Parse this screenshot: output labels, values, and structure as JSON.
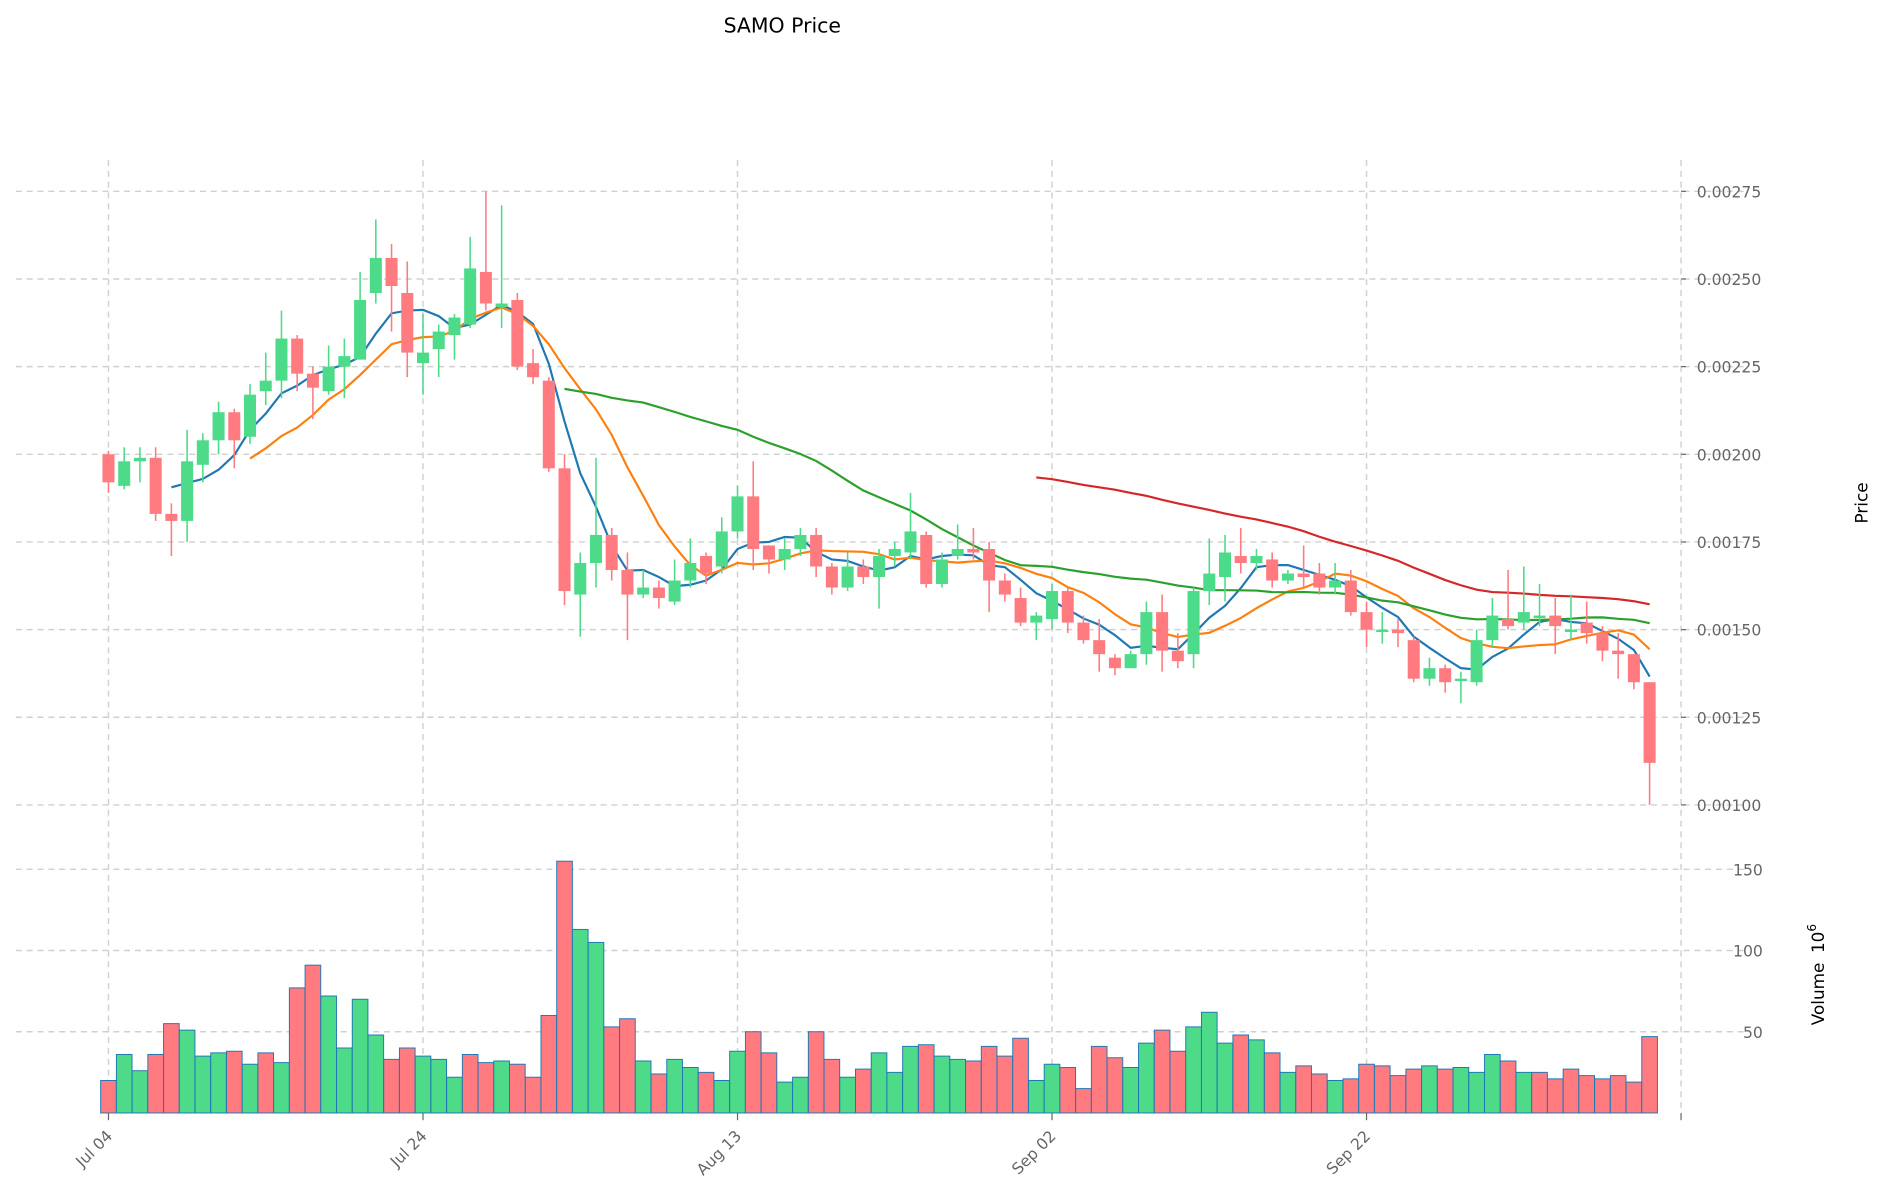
{
  "chart_data": {
    "type": "candlestick",
    "title": "SAMO Price",
    "ylabel_price": "Price",
    "ylabel_volume": "Volume",
    "volume_unit": "10",
    "volume_exp": "6",
    "start_date": "Jul 04",
    "x_tick_labels": [
      {
        "label": "Jul 04",
        "index": 0
      },
      {
        "label": "Jul 24",
        "index": 20
      },
      {
        "label": "Aug 13",
        "index": 40
      },
      {
        "label": "Sep 02",
        "index": 60
      },
      {
        "label": "Sep 22",
        "index": 80
      }
    ],
    "price_ticks": [
      "0.00100",
      "0.00125",
      "0.00150",
      "0.00175",
      "0.00200",
      "0.00225",
      "0.00250",
      "0.00275"
    ],
    "volume_ticks": [
      "50",
      "100",
      "150"
    ],
    "price_range": [
      0.00096,
      0.00285
    ],
    "volume_range": [
      0,
      160
    ],
    "colors": {
      "up": "#4ddb8a",
      "down": "#ff7b80",
      "volume_edge": "#1f77b4",
      "ma": [
        "#1f77b4",
        "#ff7f0e",
        "#2ca02c",
        "#d62728"
      ]
    },
    "moving_averages": [
      5,
      10,
      30,
      60
    ],
    "ohlc": [
      [
        0.002,
        0.00201,
        0.00189,
        0.00192
      ],
      [
        0.00191,
        0.00202,
        0.0019,
        0.00198
      ],
      [
        0.00198,
        0.00202,
        0.00192,
        0.00199
      ],
      [
        0.00199,
        0.00202,
        0.00181,
        0.00183
      ],
      [
        0.00183,
        0.00186,
        0.00171,
        0.00181
      ],
      [
        0.00181,
        0.00207,
        0.00175,
        0.00198
      ],
      [
        0.00197,
        0.00206,
        0.00192,
        0.00204
      ],
      [
        0.00204,
        0.00215,
        0.002,
        0.00212
      ],
      [
        0.00212,
        0.00213,
        0.00196,
        0.00204
      ],
      [
        0.00205,
        0.0022,
        0.00203,
        0.00217
      ],
      [
        0.00218,
        0.00229,
        0.00214,
        0.00221
      ],
      [
        0.00221,
        0.00241,
        0.00216,
        0.00233
      ],
      [
        0.00233,
        0.00234,
        0.00218,
        0.00223
      ],
      [
        0.00223,
        0.00225,
        0.0021,
        0.00219
      ],
      [
        0.00218,
        0.00231,
        0.00217,
        0.00225
      ],
      [
        0.00225,
        0.00233,
        0.00216,
        0.00228
      ],
      [
        0.00227,
        0.00252,
        0.00227,
        0.00244
      ],
      [
        0.00246,
        0.00267,
        0.00243,
        0.00256
      ],
      [
        0.00256,
        0.0026,
        0.00235,
        0.00248
      ],
      [
        0.00246,
        0.00255,
        0.00222,
        0.00229
      ],
      [
        0.00226,
        0.0024,
        0.00217,
        0.00229
      ],
      [
        0.0023,
        0.00237,
        0.00222,
        0.00235
      ],
      [
        0.00234,
        0.0024,
        0.00227,
        0.00239
      ],
      [
        0.00237,
        0.00262,
        0.00236,
        0.00253
      ],
      [
        0.00252,
        0.00275,
        0.00241,
        0.00243
      ],
      [
        0.00242,
        0.00271,
        0.00236,
        0.00243
      ],
      [
        0.00244,
        0.00246,
        0.00224,
        0.00225
      ],
      [
        0.00226,
        0.0023,
        0.0022,
        0.00222
      ],
      [
        0.00221,
        0.00222,
        0.00195,
        0.00196
      ],
      [
        0.00196,
        0.002,
        0.00157,
        0.00161
      ],
      [
        0.0016,
        0.00172,
        0.00148,
        0.00169
      ],
      [
        0.00169,
        0.00199,
        0.00162,
        0.00177
      ],
      [
        0.00177,
        0.00179,
        0.00164,
        0.00167
      ],
      [
        0.00167,
        0.00172,
        0.00147,
        0.0016
      ],
      [
        0.0016,
        0.00167,
        0.00159,
        0.00162
      ],
      [
        0.00162,
        0.00164,
        0.00156,
        0.00159
      ],
      [
        0.00158,
        0.0017,
        0.00157,
        0.00164
      ],
      [
        0.00164,
        0.00176,
        0.00162,
        0.00169
      ],
      [
        0.00171,
        0.00172,
        0.00163,
        0.00166
      ],
      [
        0.00168,
        0.00182,
        0.00166,
        0.00178
      ],
      [
        0.00178,
        0.00191,
        0.00176,
        0.00188
      ],
      [
        0.00188,
        0.00198,
        0.00167,
        0.00173
      ],
      [
        0.00174,
        0.00174,
        0.00166,
        0.0017
      ],
      [
        0.0017,
        0.00176,
        0.00167,
        0.00173
      ],
      [
        0.00173,
        0.00179,
        0.00171,
        0.00177
      ],
      [
        0.00177,
        0.00179,
        0.00165,
        0.00168
      ],
      [
        0.00168,
        0.00169,
        0.0016,
        0.00162
      ],
      [
        0.00162,
        0.00172,
        0.00161,
        0.00168
      ],
      [
        0.00168,
        0.0017,
        0.00163,
        0.00165
      ],
      [
        0.00165,
        0.00173,
        0.00156,
        0.00171
      ],
      [
        0.00171,
        0.00175,
        0.00168,
        0.00173
      ],
      [
        0.00172,
        0.00189,
        0.0017,
        0.00178
      ],
      [
        0.00177,
        0.00178,
        0.00162,
        0.00163
      ],
      [
        0.00163,
        0.00172,
        0.00162,
        0.0017
      ],
      [
        0.00171,
        0.0018,
        0.0017,
        0.00173
      ],
      [
        0.00173,
        0.00179,
        0.0017,
        0.00172
      ],
      [
        0.00173,
        0.00175,
        0.00155,
        0.00164
      ],
      [
        0.00164,
        0.00166,
        0.00158,
        0.0016
      ],
      [
        0.00159,
        0.00162,
        0.00151,
        0.00152
      ],
      [
        0.00152,
        0.00155,
        0.00147,
        0.00154
      ],
      [
        0.00153,
        0.00163,
        0.0015,
        0.00161
      ],
      [
        0.00161,
        0.00162,
        0.00149,
        0.00152
      ],
      [
        0.00152,
        0.00154,
        0.00146,
        0.00147
      ],
      [
        0.00147,
        0.00153,
        0.00138,
        0.00143
      ],
      [
        0.00142,
        0.00143,
        0.00137,
        0.00139
      ],
      [
        0.00139,
        0.00144,
        0.00139,
        0.00143
      ],
      [
        0.00143,
        0.00158,
        0.0014,
        0.00155
      ],
      [
        0.00155,
        0.0016,
        0.00138,
        0.00144
      ],
      [
        0.00144,
        0.00149,
        0.00139,
        0.00141
      ],
      [
        0.00143,
        0.00162,
        0.00139,
        0.00161
      ],
      [
        0.00161,
        0.00176,
        0.00157,
        0.00166
      ],
      [
        0.00165,
        0.00177,
        0.00158,
        0.00172
      ],
      [
        0.00171,
        0.00179,
        0.00166,
        0.00169
      ],
      [
        0.00169,
        0.00173,
        0.00167,
        0.00171
      ],
      [
        0.0017,
        0.00172,
        0.00162,
        0.00164
      ],
      [
        0.00164,
        0.00167,
        0.00163,
        0.00166
      ],
      [
        0.00166,
        0.00174,
        0.00162,
        0.00165
      ],
      [
        0.00166,
        0.00169,
        0.0016,
        0.00162
      ],
      [
        0.00162,
        0.00169,
        0.0016,
        0.00164
      ],
      [
        0.00164,
        0.00167,
        0.00154,
        0.00155
      ],
      [
        0.00155,
        0.00158,
        0.00145,
        0.0015
      ],
      [
        0.0015,
        0.00155,
        0.00146,
        0.0015
      ],
      [
        0.0015,
        0.00153,
        0.00145,
        0.00149
      ],
      [
        0.00147,
        0.00148,
        0.00135,
        0.00136
      ],
      [
        0.00136,
        0.00142,
        0.00134,
        0.00139
      ],
      [
        0.00139,
        0.0014,
        0.00132,
        0.00135
      ],
      [
        0.00136,
        0.00138,
        0.00129,
        0.00136
      ],
      [
        0.00135,
        0.0015,
        0.00134,
        0.00147
      ],
      [
        0.00147,
        0.00159,
        0.00145,
        0.00154
      ],
      [
        0.00153,
        0.00167,
        0.0015,
        0.00151
      ],
      [
        0.00152,
        0.00168,
        0.0015,
        0.00155
      ],
      [
        0.00154,
        0.00163,
        0.00151,
        0.00154
      ],
      [
        0.00154,
        0.00159,
        0.00143,
        0.00151
      ],
      [
        0.0015,
        0.0016,
        0.00147,
        0.0015
      ],
      [
        0.00152,
        0.00158,
        0.00146,
        0.00149
      ],
      [
        0.00149,
        0.00151,
        0.00141,
        0.00144
      ],
      [
        0.00144,
        0.00149,
        0.00136,
        0.00143
      ],
      [
        0.00143,
        0.00143,
        0.00133,
        0.00135
      ],
      [
        0.00135,
        0.00135,
        0.001,
        0.00112
      ]
    ],
    "volume": [
      20,
      36,
      26,
      36,
      55,
      51,
      35,
      37,
      38,
      30,
      37,
      31,
      77,
      91,
      72,
      40,
      70,
      48,
      33,
      40,
      35,
      33,
      22,
      36,
      31,
      32,
      30,
      22,
      60,
      155,
      113,
      105,
      53,
      58,
      32,
      24,
      33,
      28,
      25,
      20,
      38,
      50,
      37,
      19,
      22,
      50,
      33,
      22,
      27,
      37,
      25,
      41,
      42,
      35,
      33,
      32,
      41,
      35,
      46,
      20,
      30,
      28,
      15,
      41,
      34,
      28,
      43,
      51,
      38,
      53,
      62,
      43,
      48,
      45,
      37,
      25,
      29,
      24,
      20,
      21,
      30,
      29,
      23,
      27,
      29,
      27,
      28,
      25,
      36,
      32,
      25,
      25,
      21,
      27,
      23,
      21,
      23,
      19,
      47
    ],
    "volume_up": [
      false,
      true,
      true,
      false,
      false,
      true,
      true,
      true,
      false,
      true,
      false,
      true,
      false,
      false,
      true,
      true,
      true,
      true,
      false,
      false,
      true,
      true,
      true,
      false,
      false,
      true,
      false,
      false,
      false,
      false,
      true,
      true,
      false,
      false,
      true,
      false,
      true,
      true,
      false,
      true,
      true,
      false,
      false,
      true,
      true,
      false,
      false,
      true,
      false,
      true,
      true,
      true,
      false,
      true,
      true,
      false,
      false,
      false,
      false,
      true,
      true,
      false,
      false,
      false,
      false,
      true,
      true,
      false,
      false,
      true,
      true,
      true,
      false,
      true,
      false,
      true,
      false,
      false,
      true,
      false,
      false,
      false,
      false,
      false,
      true,
      false,
      true,
      true,
      true,
      false,
      true,
      false,
      false,
      false,
      false,
      false,
      false,
      false,
      false
    ]
  }
}
